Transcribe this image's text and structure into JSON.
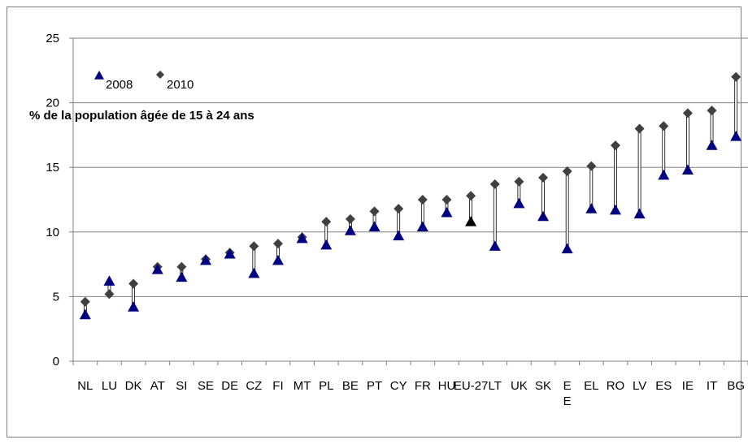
{
  "chart_data": {
    "type": "scatter",
    "ylabel": "% de la population âgée de 15 à 24 ans",
    "ylim": [
      0,
      25
    ],
    "y_ticks": [
      "0",
      "5",
      "10",
      "15",
      "20",
      "25"
    ],
    "categories": [
      "NL",
      "LU",
      "DK",
      "AT",
      "SI",
      "SE",
      "DE",
      "CZ",
      "FI",
      "MT",
      "PL",
      "BE",
      "PT",
      "CY",
      "FR",
      "HU",
      "EU-27",
      "LT",
      "UK",
      "SK",
      "E",
      "EL",
      "RO",
      "LV",
      "ES",
      "IE",
      "IT",
      "BG"
    ],
    "category_labels": [
      {
        "text": "NL",
        "sub": ""
      },
      {
        "text": "LU",
        "sub": ""
      },
      {
        "text": "DK",
        "sub": ""
      },
      {
        "text": "AT",
        "sub": ""
      },
      {
        "text": "SI",
        "sub": ""
      },
      {
        "text": "SE",
        "sub": ""
      },
      {
        "text": "DE",
        "sub": ""
      },
      {
        "text": "CZ",
        "sub": ""
      },
      {
        "text": "FI",
        "sub": ""
      },
      {
        "text": "MT",
        "sub": ""
      },
      {
        "text": "PL",
        "sub": ""
      },
      {
        "text": "BE",
        "sub": ""
      },
      {
        "text": "PT",
        "sub": ""
      },
      {
        "text": "CY",
        "sub": ""
      },
      {
        "text": "FR",
        "sub": ""
      },
      {
        "text": "HU",
        "sub": ""
      },
      {
        "text": "EU-27",
        "sub": ""
      },
      {
        "text": "LT",
        "sub": ""
      },
      {
        "text": "UK",
        "sub": ""
      },
      {
        "text": "SK",
        "sub": ""
      },
      {
        "text": "E",
        "sub": "E"
      },
      {
        "text": "EL",
        "sub": ""
      },
      {
        "text": "RO",
        "sub": ""
      },
      {
        "text": "LV",
        "sub": ""
      },
      {
        "text": "ES",
        "sub": ""
      },
      {
        "text": "IE",
        "sub": ""
      },
      {
        "text": "IT",
        "sub": ""
      },
      {
        "text": "BG",
        "sub": ""
      }
    ],
    "series": [
      {
        "name": "2008",
        "marker": "triangle",
        "color": "#000080",
        "highlight_color": "#000000",
        "highlight_category": "EU-27",
        "values": [
          3.6,
          6.2,
          4.2,
          7.1,
          6.5,
          7.8,
          8.3,
          6.8,
          7.8,
          9.5,
          9.0,
          10.1,
          10.4,
          9.7,
          10.4,
          11.5,
          10.8,
          8.9,
          12.2,
          11.2,
          8.7,
          11.8,
          11.7,
          11.4,
          14.4,
          14.8,
          16.7,
          17.4
        ]
      },
      {
        "name": "2010",
        "marker": "diamond",
        "color": "#404040",
        "values": [
          4.6,
          5.2,
          6.0,
          7.3,
          7.3,
          7.9,
          8.4,
          8.9,
          9.1,
          9.6,
          10.8,
          11.0,
          11.6,
          11.8,
          12.5,
          12.5,
          12.8,
          13.7,
          13.9,
          14.2,
          14.7,
          15.1,
          16.7,
          18.0,
          18.2,
          19.2,
          19.4,
          22.0
        ]
      }
    ],
    "legend": {
      "placement": "top-left",
      "entries": [
        "2008",
        "2010"
      ]
    },
    "grid": {
      "horizontal": true,
      "vertical": false
    },
    "colors": {
      "triangle": "#000080",
      "diamond": "#404040",
      "eu_triangle": "#000000",
      "connector": "#000000"
    }
  }
}
